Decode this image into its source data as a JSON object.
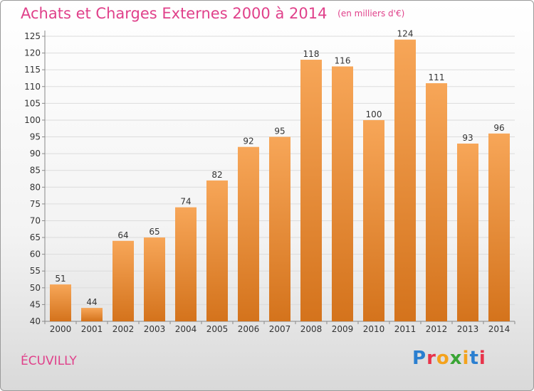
{
  "header": {
    "title": "Achats et Charges Externes 2000 à 2014",
    "subtitle": "(en milliers d'€)"
  },
  "footer": {
    "commune": "ÉCUVILLY",
    "logo_text": "Proxiti",
    "logo_colors": [
      "#2a7fd0",
      "#e8334a",
      "#f4a21c",
      "#3aa535",
      "#f4a21c",
      "#2a7fd0",
      "#e8334a"
    ]
  },
  "colors": {
    "bar_top": "#f7a658",
    "bar_bottom": "#d4731c",
    "title": "#e0408a"
  },
  "chart_data": {
    "type": "bar",
    "categories": [
      "2000",
      "2001",
      "2002",
      "2003",
      "2004",
      "2005",
      "2006",
      "2007",
      "2008",
      "2009",
      "2010",
      "2011",
      "2012",
      "2013",
      "2014"
    ],
    "values": [
      51,
      44,
      64,
      65,
      74,
      82,
      92,
      95,
      118,
      116,
      100,
      124,
      111,
      93,
      96
    ],
    "title": "Achats et Charges Externes 2000 à 2014",
    "ylim": [
      40,
      125
    ],
    "yticks": [
      40,
      45,
      50,
      55,
      60,
      65,
      70,
      75,
      80,
      85,
      90,
      95,
      100,
      105,
      110,
      115,
      120,
      125
    ],
    "grid": true
  }
}
